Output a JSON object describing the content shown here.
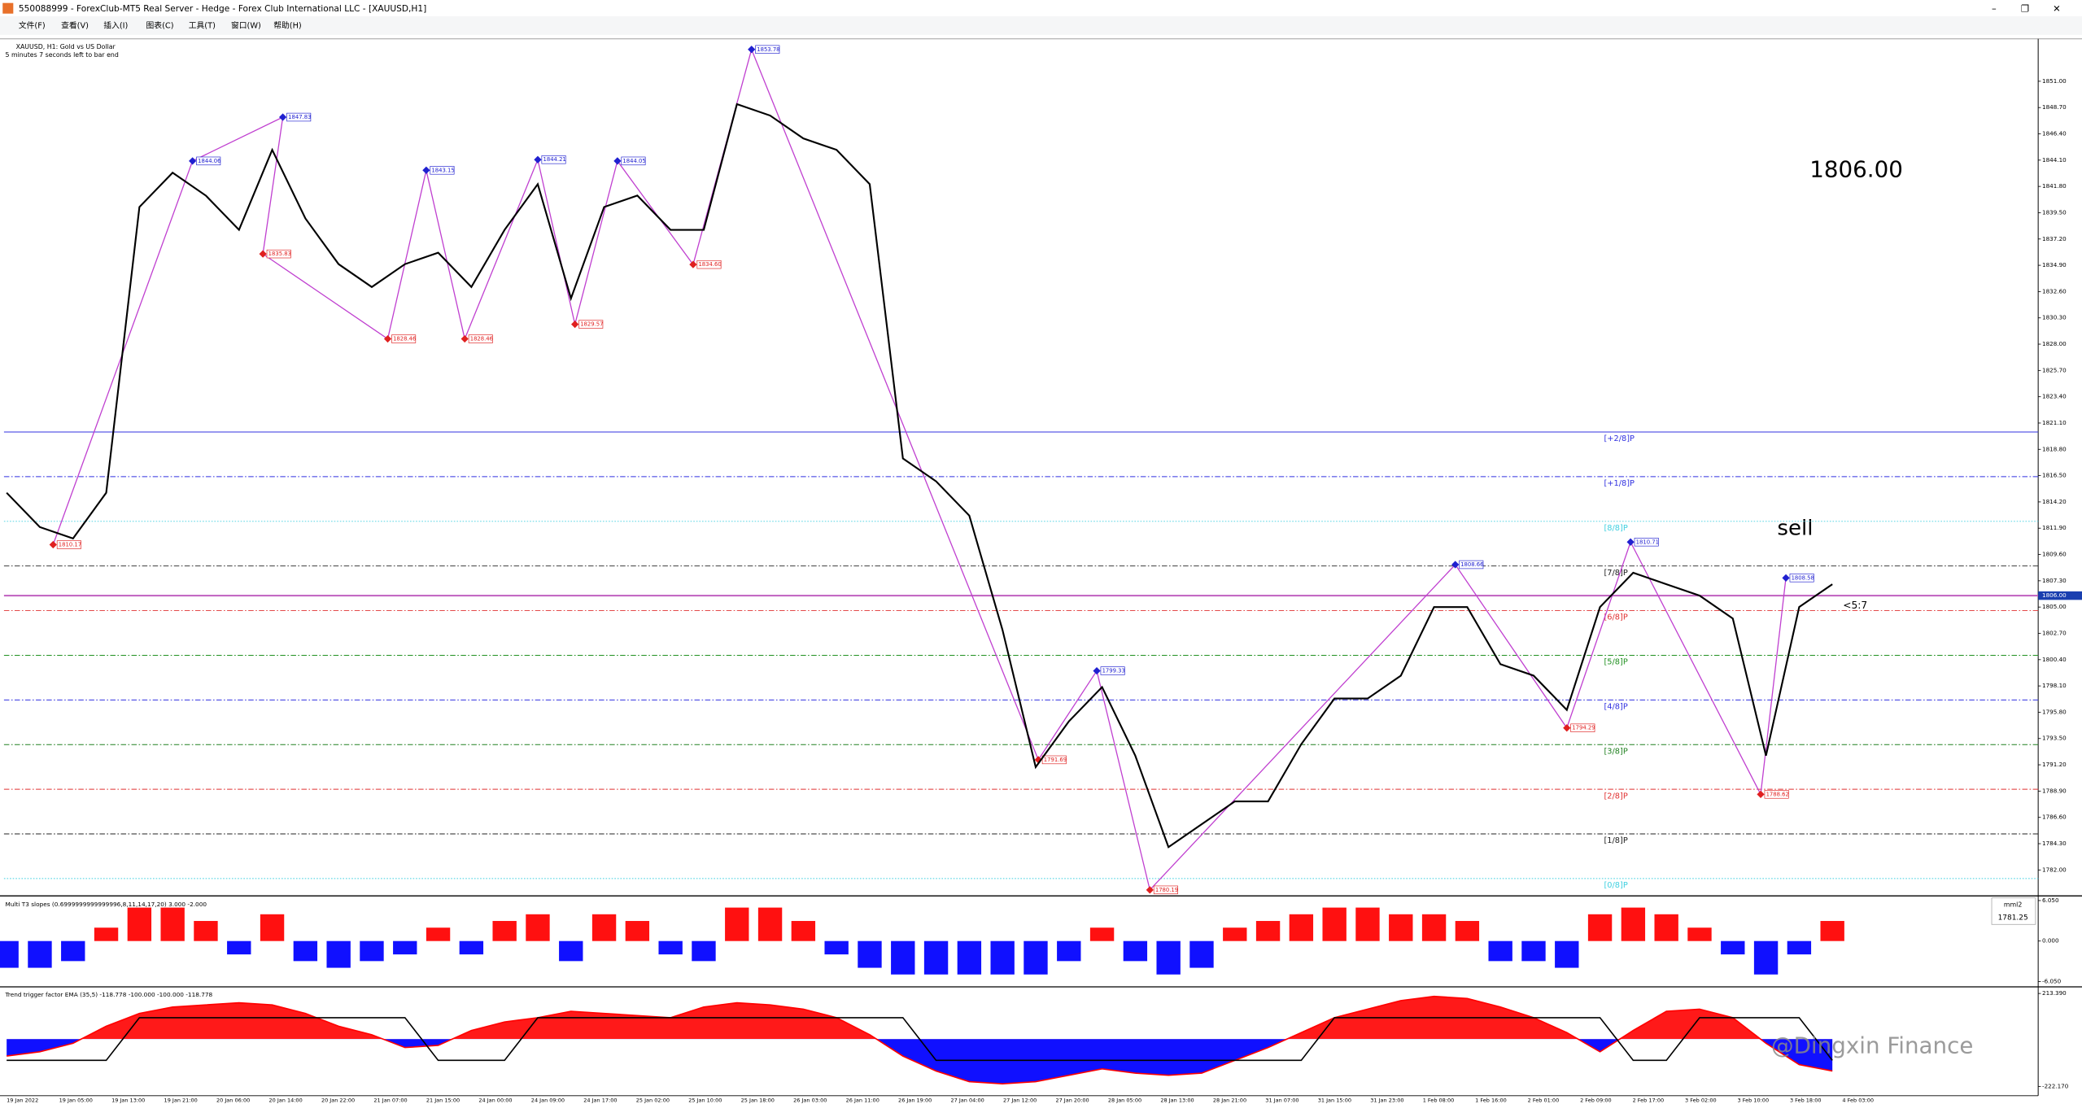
{
  "window": {
    "title": "550088999 - ForexClub-MT5 Real Server - Hedge - Forex Club International LLC - [XAUUSD,H1]",
    "menu": [
      "文件(F)",
      "查看(V)",
      "插入(I)",
      "图表(C)",
      "工具(T)",
      "窗口(W)",
      "帮助(H)"
    ]
  },
  "chart_info": {
    "symbol": "XAUUSD, H1:  Gold vs US Dollar",
    "timer": "5 minutes 7 seconds left to bar end"
  },
  "annotations": {
    "price": "1806.00",
    "signal": "sell",
    "ratio": "<5:7",
    "watermark": "@Dingxin Finance"
  },
  "time_axis": [
    "19 Jan 2022",
    "19 Jan 05:00",
    "19 Jan 13:00",
    "19 Jan 21:00",
    "20 Jan 06:00",
    "20 Jan 14:00",
    "20 Jan 22:00",
    "21 Jan 07:00",
    "21 Jan 15:00",
    "24 Jan 00:00",
    "24 Jan 09:00",
    "24 Jan 17:00",
    "25 Jan 02:00",
    "25 Jan 10:00",
    "25 Jan 18:00",
    "26 Jan 03:00",
    "26 Jan 11:00",
    "26 Jan 19:00",
    "27 Jan 04:00",
    "27 Jan 12:00",
    "27 Jan 20:00",
    "28 Jan 05:00",
    "28 Jan 13:00",
    "28 Jan 21:00",
    "31 Jan 07:00",
    "31 Jan 15:00",
    "31 Jan 23:00",
    "1 Feb 08:00",
    "1 Feb 16:00",
    "2 Feb 01:00",
    "2 Feb 09:00",
    "2 Feb 17:00",
    "3 Feb 02:00",
    "3 Feb 10:00",
    "3 Feb 18:00",
    "4 Feb 03:00"
  ],
  "chart_data": [
    {
      "type": "line",
      "color": "#000000",
      "values": [
        1815,
        1812,
        1811,
        1815,
        1840,
        1843,
        1841,
        1838,
        1845,
        1839,
        1835,
        1833,
        1835,
        1836,
        1833,
        1838,
        1842,
        1832,
        1840,
        1841,
        1838,
        1838,
        1849,
        1848,
        1846,
        1845,
        1842,
        1818,
        1816,
        1813,
        1803,
        1791,
        1795,
        1798,
        1792,
        1784,
        1786,
        1788,
        1788,
        1793,
        1797,
        1797,
        1799,
        1805,
        1805,
        1800,
        1799,
        1796,
        1805,
        1808,
        1807,
        1806,
        1804,
        1792,
        1805,
        1807
      ],
      "ylim": [
        1779.79,
        1854.48
      ],
      "yticks": [
        {
          "value": 1782,
          "label": "1782.00"
        },
        {
          "value": 1784.3,
          "label": "1784.30"
        },
        {
          "value": 1786.6,
          "label": "1786.60"
        },
        {
          "value": 1788.9,
          "label": "1788.90"
        },
        {
          "value": 1791.2,
          "label": "1791.20"
        },
        {
          "value": 1793.5,
          "label": "1793.50"
        },
        {
          "value": 1795.8,
          "label": "1795.80"
        },
        {
          "value": 1798.1,
          "label": "1798.10"
        },
        {
          "value": 1800.4,
          "label": "1800.40"
        },
        {
          "value": 1802.7,
          "label": "1802.70"
        },
        {
          "value": 1805,
          "label": "1805.00"
        },
        {
          "value": 1807.3,
          "label": "1807.30"
        },
        {
          "value": 1809.6,
          "label": "1809.60"
        },
        {
          "value": 1811.9,
          "label": "1811.90"
        },
        {
          "value": 1814.2,
          "label": "1814.20"
        },
        {
          "value": 1816.5,
          "label": "1816.50"
        },
        {
          "value": 1818.8,
          "label": "1818.80"
        },
        {
          "value": 1821.1,
          "label": "1821.10"
        },
        {
          "value": 1823.4,
          "label": "1823.40"
        },
        {
          "value": 1825.7,
          "label": "1825.70"
        },
        {
          "value": 1828,
          "label": "1828.00"
        },
        {
          "value": 1830.3,
          "label": "1830.30"
        },
        {
          "value": 1832.6,
          "label": "1832.60"
        },
        {
          "value": 1834.9,
          "label": "1834.90"
        },
        {
          "value": 1837.2,
          "label": "1837.20"
        },
        {
          "value": 1839.5,
          "label": "1839.50"
        },
        {
          "value": 1841.8,
          "label": "1841.80"
        },
        {
          "value": 1844.1,
          "label": "1844.10"
        },
        {
          "value": 1846.4,
          "label": "1846.40"
        },
        {
          "value": 1848.7,
          "label": "1848.70"
        },
        {
          "value": 1851,
          "label": "1851.00"
        }
      ],
      "current_price": {
        "value": 1806,
        "label": "1806.00",
        "color": "#c060c0"
      },
      "levels": [
        {
          "value": 1820.3125,
          "label": "[+2/8]P",
          "color": "#3030e0",
          "style": "solid"
        },
        {
          "value": 1816.40625,
          "label": "[+1/8]P",
          "color": "#3030e0",
          "style": "dashdot"
        },
        {
          "value": 1812.5,
          "label": "[8/8]P",
          "color": "#40d0e0",
          "style": "dot"
        },
        {
          "value": 1808.59375,
          "label": "[7/8]P",
          "color": "#202020",
          "style": "dashdot"
        },
        {
          "value": 1804.6875,
          "label": "[6/8]P",
          "color": "#e03030",
          "style": "dashdot"
        },
        {
          "value": 1800.78125,
          "label": "[5/8]P",
          "color": "#209020",
          "style": "dashdot"
        },
        {
          "value": 1796.875,
          "label": "[4/8]P",
          "color": "#3030e0",
          "style": "dashdot"
        },
        {
          "value": 1792.96875,
          "label": "[3/8]P",
          "color": "#208020",
          "style": "dashdot"
        },
        {
          "value": 1789.0625,
          "label": "[2/8]P",
          "color": "#e03030",
          "style": "dashdot"
        },
        {
          "value": 1785.15625,
          "label": "[1/8]P",
          "color": "#202020",
          "style": "dashdot"
        },
        {
          "value": 1781.25,
          "label": "[0/8]P",
          "color": "#40d0e0",
          "style": "dot"
        }
      ],
      "zigzag_labels": [
        "1810.17",
        "1844.06",
        "1847.83",
        "1835.83",
        "1828.46",
        "1843.15",
        "1828.46",
        "1844.21",
        "1829.57",
        "1844.05",
        "1834.60",
        "1853.78",
        "1791.69",
        "1799.33",
        "1780.19",
        "1808.66",
        "1794.29",
        "1810.71",
        "1788.62",
        "1808.58"
      ]
    },
    {
      "type": "bar",
      "title": "Multi T3 slopes (0.6999999999999996,8,11,14,17,20) 3.000 -2.000",
      "color_up": "#ff1010",
      "color_down": "#1010ff",
      "values": [
        -4,
        -4,
        -3,
        2,
        5,
        5,
        3,
        -2,
        4,
        -3,
        -4,
        -3,
        -2,
        2,
        -2,
        3,
        4,
        -3,
        4,
        3,
        -2,
        -3,
        5,
        5,
        3,
        -2,
        -4,
        -5,
        -5,
        -5,
        -5,
        -5,
        -3,
        2,
        -3,
        -5,
        -4,
        2,
        3,
        4,
        5,
        5,
        4,
        4,
        3,
        -3,
        -3,
        -4,
        4,
        5,
        4,
        2,
        -2,
        -5,
        -2,
        3
      ],
      "ylim": [
        -6.45,
        6.65
      ],
      "yticks": [
        {
          "value": 6.05,
          "label": "6.050"
        },
        {
          "value": 0,
          "label": "0.000"
        },
        {
          "value": -6.05,
          "label": "-6.050"
        }
      ],
      "box": [
        "mml2",
        "1781.25"
      ]
    },
    {
      "type": "line",
      "title": "Trend trigger factor EMA (35,5) -118.778 -100.000 -100.000 -118.778",
      "series": [
        {
          "color": "#ff0000",
          "values": [
            -80,
            -60,
            -20,
            60,
            120,
            150,
            160,
            170,
            160,
            120,
            60,
            20,
            -40,
            -30,
            40,
            80,
            100,
            130,
            120,
            110,
            100,
            150,
            170,
            160,
            140,
            100,
            20,
            -80,
            -150,
            -200,
            -210,
            -200,
            -170,
            -140,
            -160,
            -170,
            -160,
            -100,
            -40,
            30,
            100,
            140,
            180,
            200,
            190,
            150,
            100,
            30,
            -60,
            40,
            130,
            140,
            100,
            -20,
            -120,
            -150
          ]
        },
        {
          "color": "#000000",
          "values": [
            -100,
            -100,
            -100,
            -100,
            100,
            100,
            100,
            100,
            100,
            100,
            100,
            100,
            100,
            -100,
            -100,
            -100,
            100,
            100,
            100,
            100,
            100,
            100,
            100,
            100,
            100,
            100,
            100,
            100,
            -100,
            -100,
            -100,
            -100,
            -100,
            -100,
            -100,
            -100,
            -100,
            -100,
            -100,
            -100,
            100,
            100,
            100,
            100,
            100,
            100,
            100,
            100,
            100,
            -100,
            -100,
            100,
            100,
            100,
            100,
            -100
          ]
        }
      ],
      "ylim": [
        -247.06,
        232.06
      ],
      "yticks": [
        {
          "value": 213.39,
          "label": "213.390"
        },
        {
          "value": -222.17,
          "label": "-222.170"
        }
      ]
    }
  ]
}
